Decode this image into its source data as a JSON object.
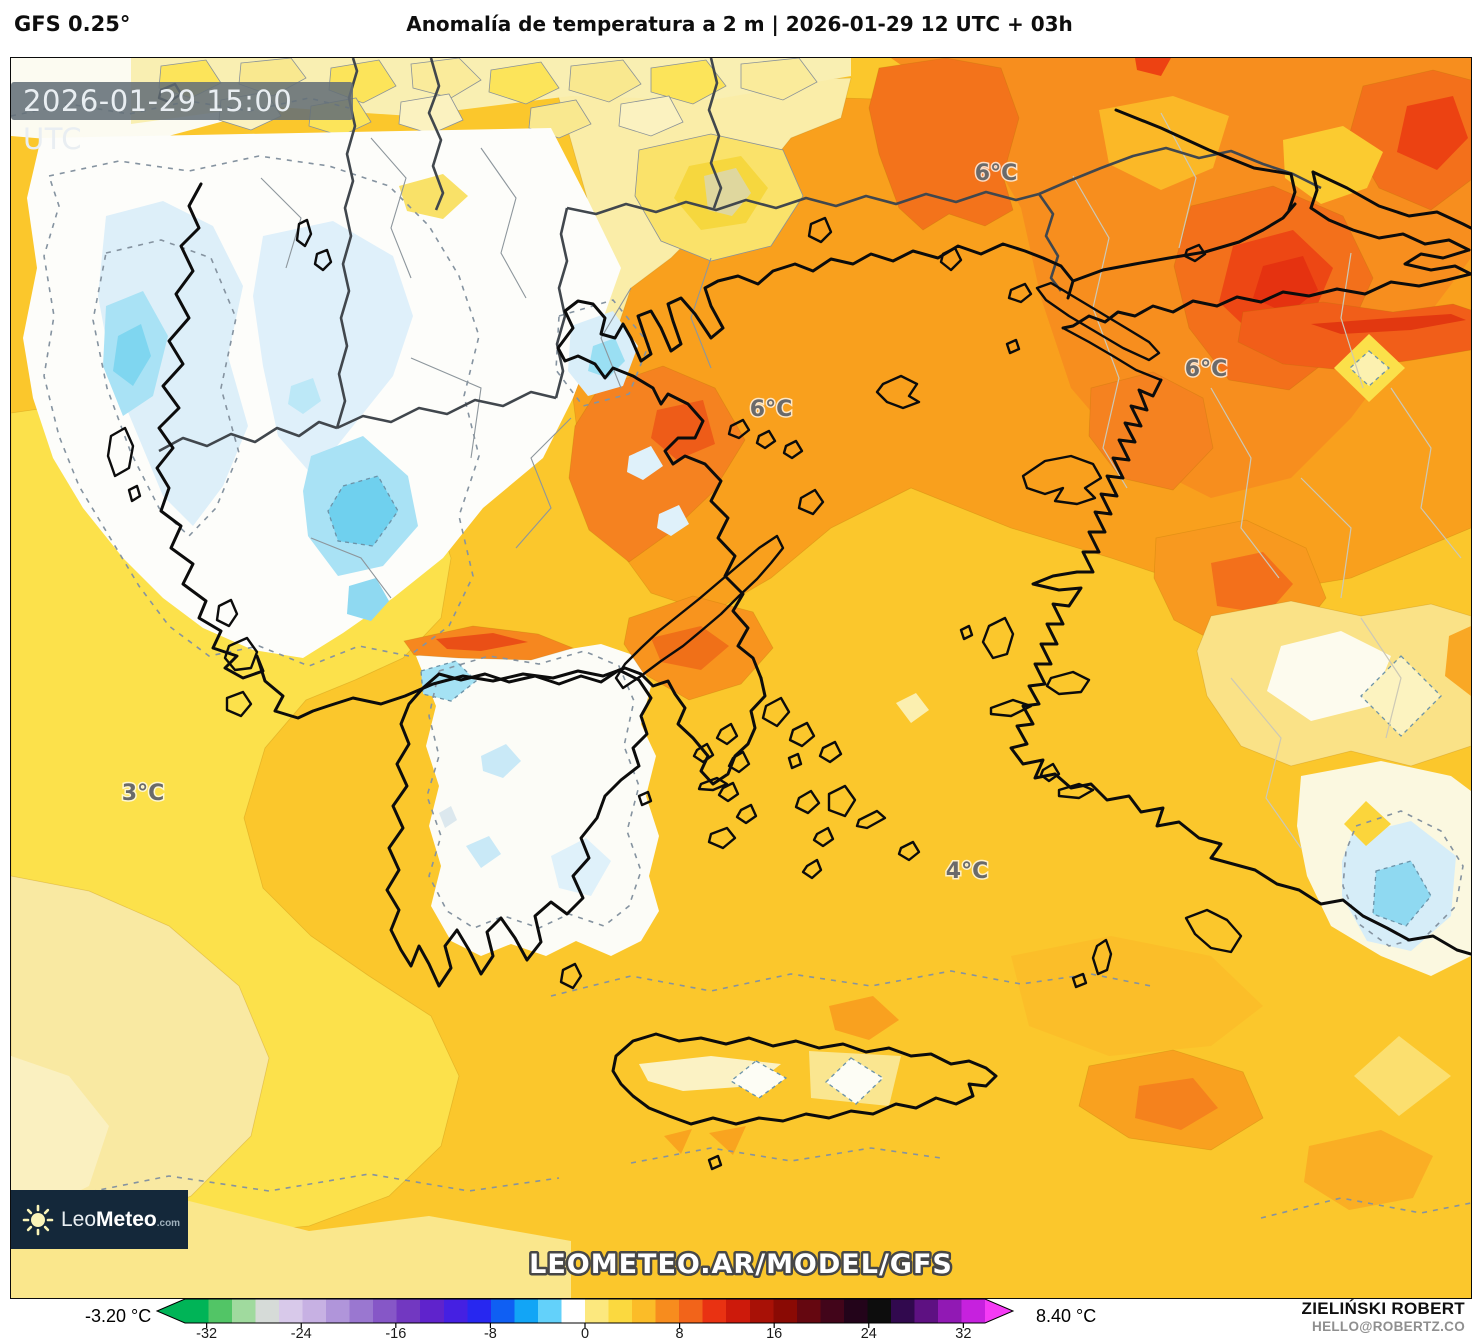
{
  "header": {
    "model": "GFS 0.25°",
    "title": "Anomalía de temperatura a 2 m | 2026-01-29 12 UTC + 03h"
  },
  "map": {
    "timestamp": "2026-01-29 15:00 UTC",
    "watermark": "LEOMETEO.AR/MODEL/GFS",
    "labels": [
      {
        "text": "6°C"
      },
      {
        "text": "6°C"
      },
      {
        "text": "6°C"
      },
      {
        "text": "3°C"
      },
      {
        "text": "4°C"
      }
    ]
  },
  "logo": {
    "prefix": "Leo",
    "bold": "Meteo",
    "tld": ".com"
  },
  "legend": {
    "min_label": "-3.20 °C",
    "max_label": "8.40 °C",
    "ticks": [
      -32,
      -24,
      -16,
      -8,
      0,
      8,
      16,
      24,
      32
    ],
    "bands": [
      {
        "from": -34,
        "to": -32,
        "color": "#00B457"
      },
      {
        "from": -32,
        "to": -30,
        "color": "#52C566"
      },
      {
        "from": -30,
        "to": -28,
        "color": "#A0DA9E"
      },
      {
        "from": -28,
        "to": -26,
        "color": "#D6DBD8"
      },
      {
        "from": -26,
        "to": -24,
        "color": "#D8C9EA"
      },
      {
        "from": -24,
        "to": -22,
        "color": "#C7B1E3"
      },
      {
        "from": -22,
        "to": -20,
        "color": "#B095DA"
      },
      {
        "from": -20,
        "to": -18,
        "color": "#9A77D0"
      },
      {
        "from": -18,
        "to": -16,
        "color": "#8657C7"
      },
      {
        "from": -16,
        "to": -14,
        "color": "#7238C1"
      },
      {
        "from": -14,
        "to": -12,
        "color": "#5F23CC"
      },
      {
        "from": -12,
        "to": -10,
        "color": "#4520E2"
      },
      {
        "from": -10,
        "to": -8,
        "color": "#2727F0"
      },
      {
        "from": -8,
        "to": -6,
        "color": "#0F5FF3"
      },
      {
        "from": -6,
        "to": -4,
        "color": "#12A5F6"
      },
      {
        "from": -4,
        "to": -2,
        "color": "#63D1FA"
      },
      {
        "from": -2,
        "to": 0,
        "color": "#FFFFFF"
      },
      {
        "from": 0,
        "to": 2,
        "color": "#FCE87E"
      },
      {
        "from": 2,
        "to": 4,
        "color": "#FBD93F"
      },
      {
        "from": 4,
        "to": 6,
        "color": "#FBBC28"
      },
      {
        "from": 6,
        "to": 8,
        "color": "#F78C1E"
      },
      {
        "from": 8,
        "to": 10,
        "color": "#F2641A"
      },
      {
        "from": 10,
        "to": 12,
        "color": "#E93212"
      },
      {
        "from": 12,
        "to": 14,
        "color": "#CD1A0B"
      },
      {
        "from": 14,
        "to": 16,
        "color": "#A81106"
      },
      {
        "from": 16,
        "to": 18,
        "color": "#8A0A04"
      },
      {
        "from": 18,
        "to": 20,
        "color": "#650710"
      },
      {
        "from": 20,
        "to": 22,
        "color": "#42051A"
      },
      {
        "from": 22,
        "to": 24,
        "color": "#23041A"
      },
      {
        "from": 24,
        "to": 26,
        "color": "#0D0D0D"
      },
      {
        "from": 26,
        "to": 28,
        "color": "#31094E"
      },
      {
        "from": 28,
        "to": 30,
        "color": "#5E1182"
      },
      {
        "from": 30,
        "to": 32,
        "color": "#9119B4"
      },
      {
        "from": 32,
        "to": 34,
        "color": "#C621DE"
      },
      {
        "from": 34,
        "to": 36,
        "color": "#F53BF5"
      }
    ]
  },
  "credits": {
    "author": "ZIELIŃSKI ROBERT",
    "contact": "HELLO@ROBERTZ.CO"
  }
}
